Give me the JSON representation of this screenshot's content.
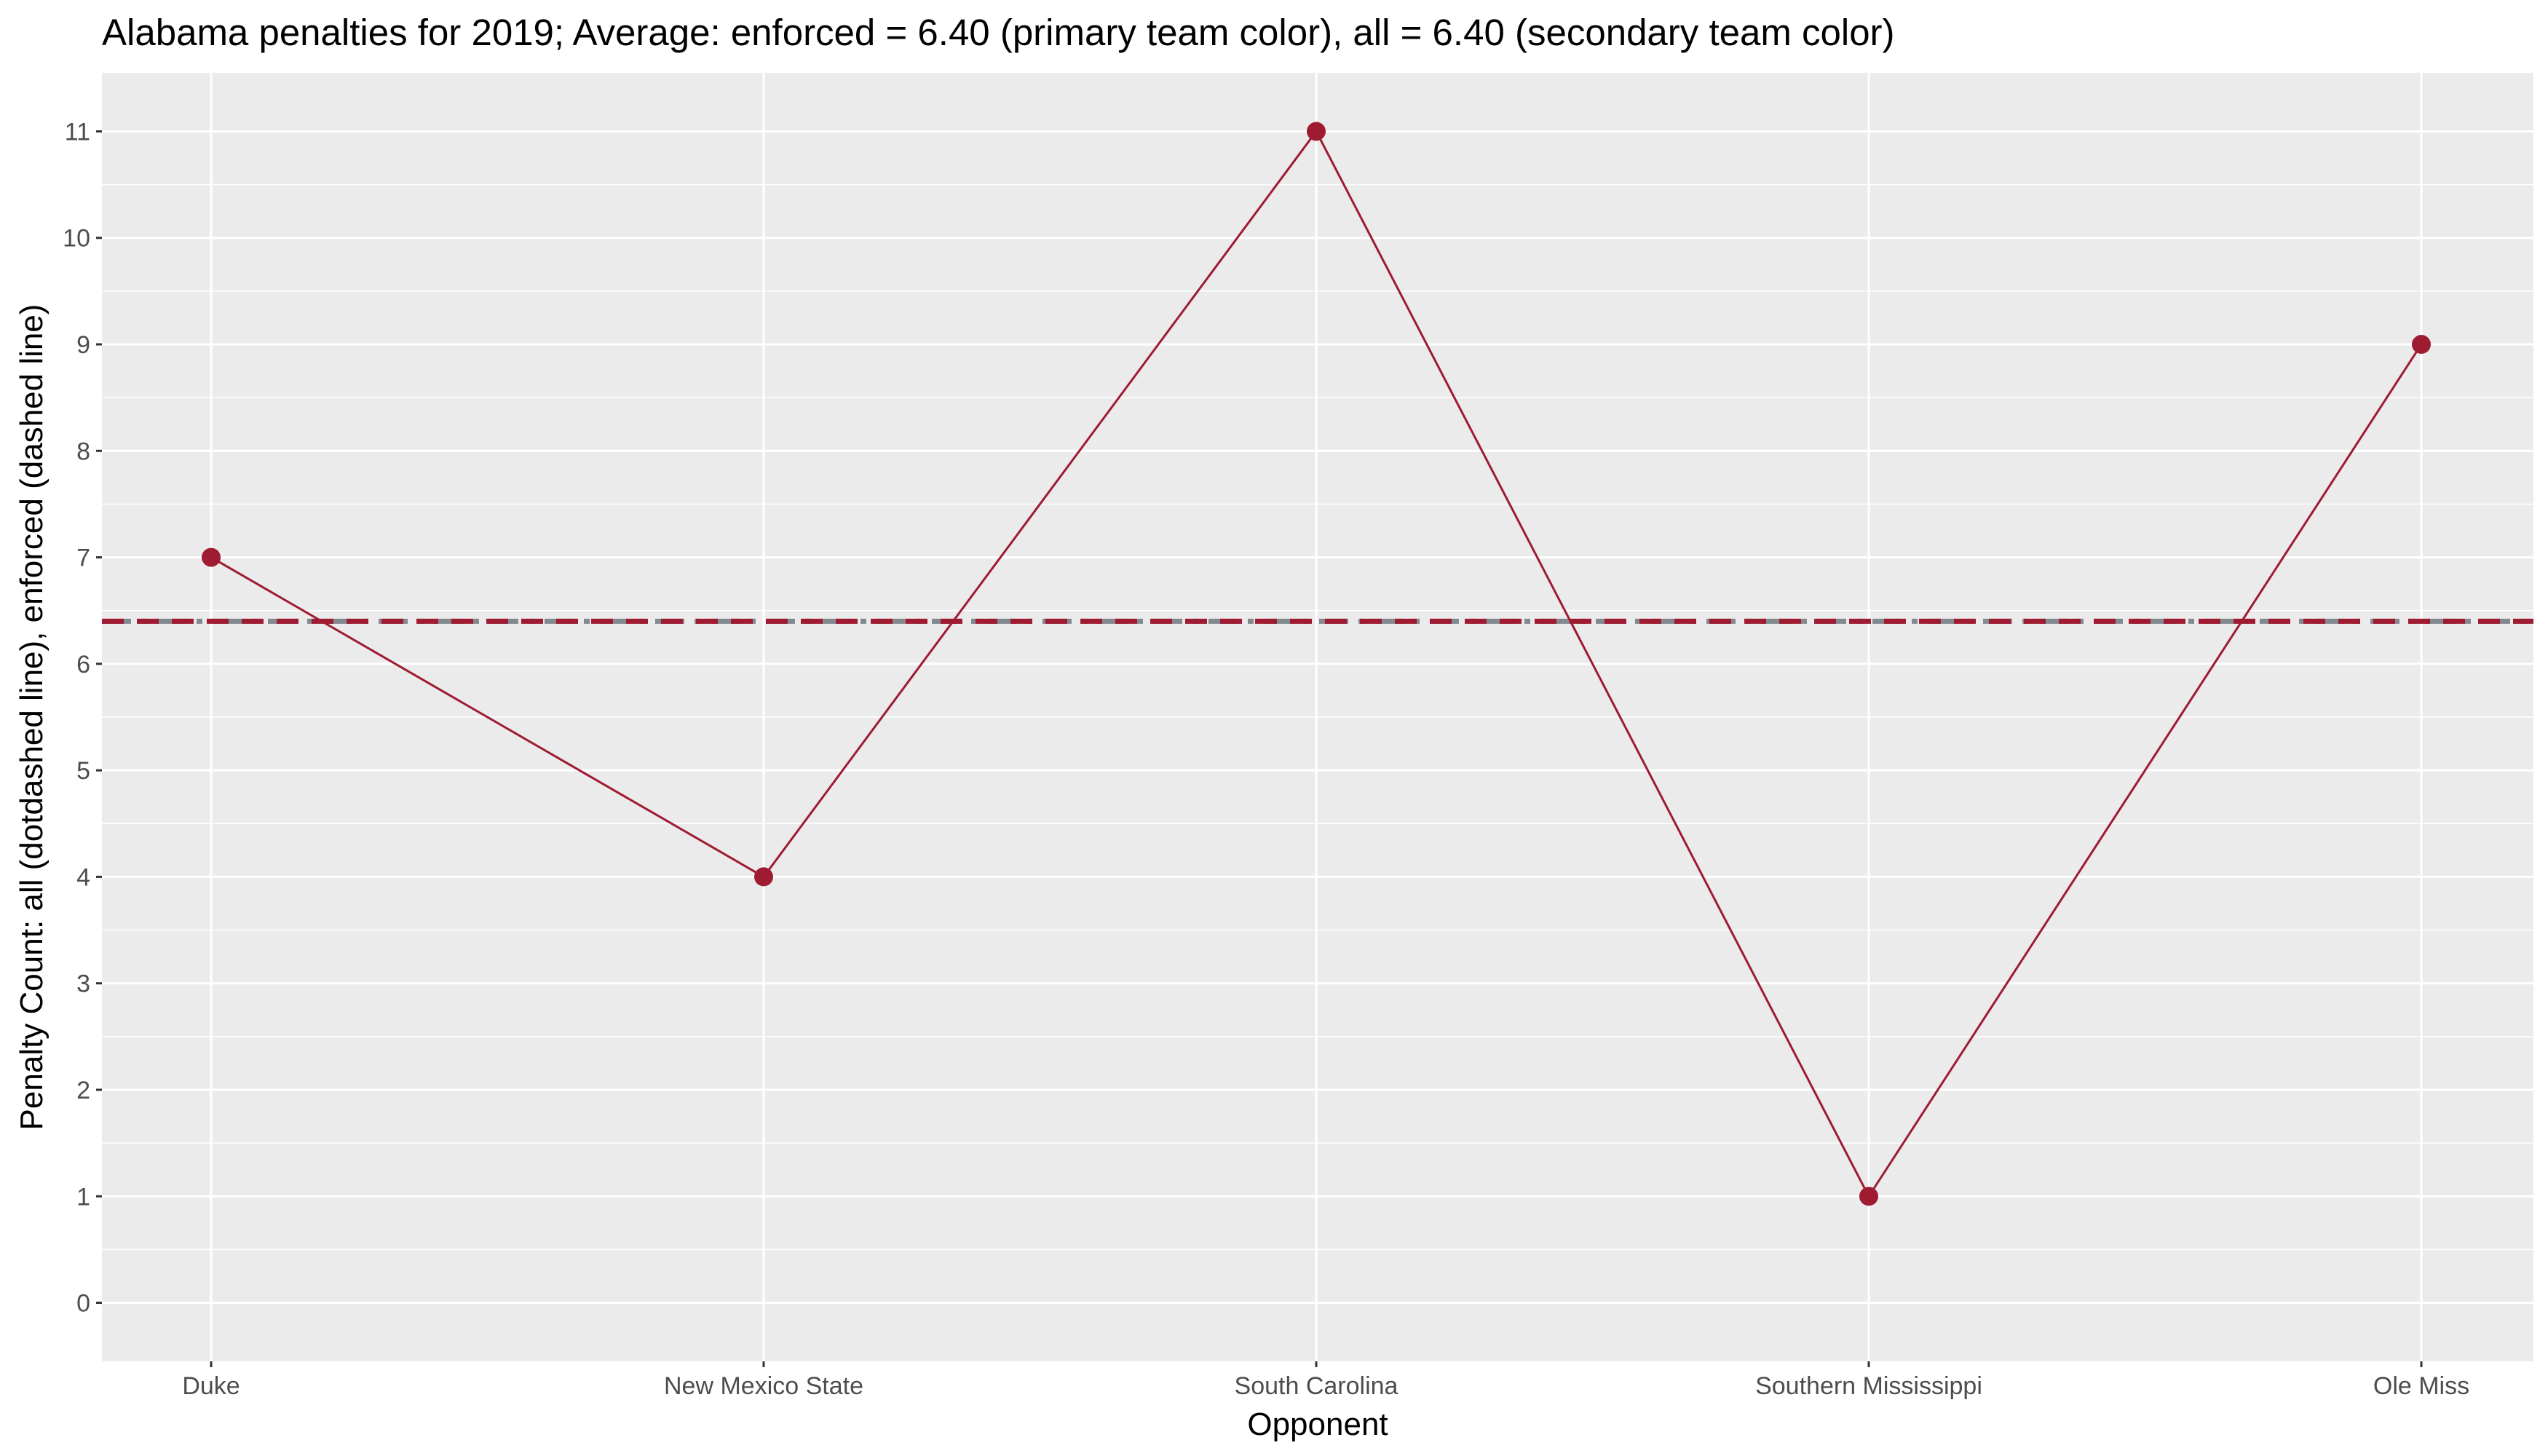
{
  "chart_data": {
    "type": "line",
    "title": "Alabama penalties for 2019; Average: enforced = 6.40 (primary team color), all = 6.40 (secondary team color)",
    "xlabel": "Opponent",
    "ylabel": "Penalty Count: all (dotdashed line), enforced (dashed line)",
    "categories": [
      "Duke",
      "New Mexico State",
      "South Carolina",
      "Southern Mississippi",
      "Ole Miss"
    ],
    "series": [
      {
        "values": [
          7,
          4,
          11,
          1,
          9
        ],
        "color": "#9E1B32"
      }
    ],
    "reference_lines": [
      {
        "value": 6.4,
        "style": "dotdashed",
        "color": "#828A8F"
      },
      {
        "value": 6.4,
        "style": "dashed",
        "color": "#9E1B32"
      }
    ],
    "ylim": [
      -0.55,
      11.55
    ],
    "yticks": [
      0,
      1,
      2,
      3,
      4,
      5,
      6,
      7,
      8,
      9,
      10,
      11
    ],
    "grid": true,
    "panel_background": "#EBEBEB",
    "grid_color": "#FFFFFF"
  }
}
